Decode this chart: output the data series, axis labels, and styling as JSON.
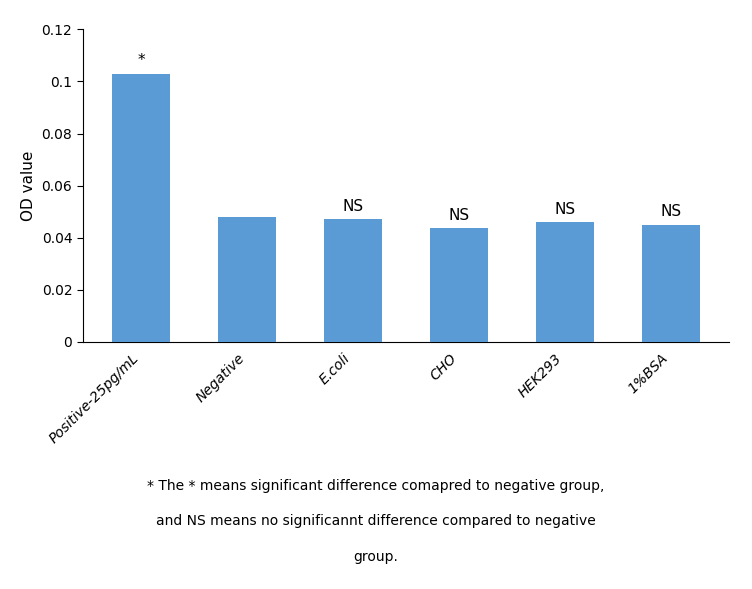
{
  "categories": [
    "Positive-25pg/mL",
    "Negative",
    "E.coli",
    "CHO",
    "HEK293",
    "1%BSA"
  ],
  "values": [
    0.103,
    0.048,
    0.047,
    0.0435,
    0.046,
    0.045
  ],
  "bar_color": "#5B9BD5",
  "ylabel": "OD value",
  "ylim": [
    0,
    0.12
  ],
  "yticks": [
    0,
    0.02,
    0.04,
    0.06,
    0.08,
    0.1,
    0.12
  ],
  "annotations": [
    "*",
    "",
    "NS",
    "NS",
    "NS",
    "NS"
  ],
  "annotation_offsets": [
    0.002,
    0,
    0.002,
    0.002,
    0.002,
    0.002
  ],
  "footnote_line1": "* The * means significant difference comapred to negative group,",
  "footnote_line2": "and NS means no significannt difference compared to negative",
  "footnote_line3": "group.",
  "background_color": "#ffffff",
  "bar_width": 0.55,
  "ylabel_fontsize": 11,
  "tick_label_fontsize": 10,
  "annotation_fontsize": 11,
  "footnote_fontsize": 10
}
